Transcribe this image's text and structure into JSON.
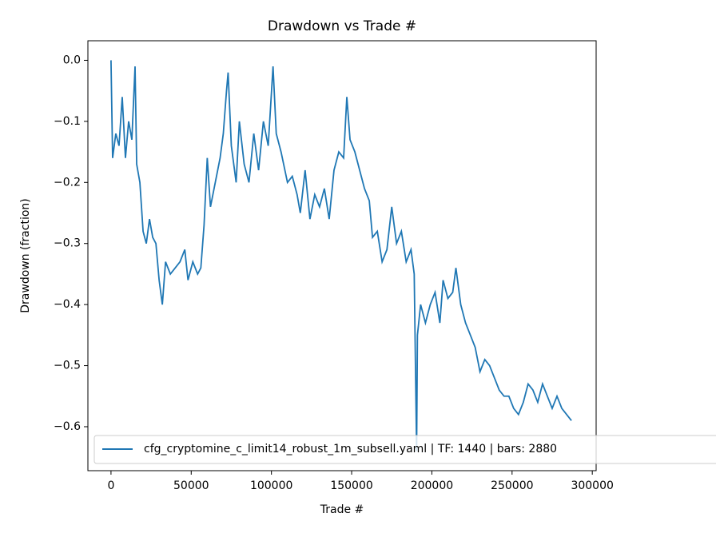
{
  "chart_data": {
    "type": "line",
    "title": "Drawdown vs Trade #",
    "xlabel": "Trade #",
    "ylabel": "Drawdown (fraction)",
    "x": [
      0,
      1000,
      3000,
      5000,
      7000,
      9000,
      11000,
      13000,
      15000,
      16000,
      18000,
      20000,
      22000,
      24000,
      26000,
      28000,
      30000,
      32000,
      34000,
      37000,
      40000,
      43000,
      46000,
      48000,
      51000,
      54000,
      56000,
      58000,
      60000,
      62000,
      65000,
      68000,
      70000,
      72000,
      73000,
      75000,
      78000,
      80000,
      83000,
      86000,
      89000,
      92000,
      95000,
      98000,
      101000,
      103000,
      106000,
      110000,
      113000,
      116000,
      118000,
      121000,
      124000,
      127000,
      130000,
      133000,
      136000,
      139000,
      142000,
      145000,
      147000,
      149000,
      152000,
      155000,
      158000,
      161000,
      163000,
      166000,
      169000,
      172000,
      175000,
      178000,
      181000,
      184000,
      187000,
      189000,
      190500,
      191000,
      193000,
      196000,
      199000,
      202000,
      205000,
      207000,
      210000,
      213000,
      215000,
      218000,
      221000,
      224000,
      227000,
      230000,
      233000,
      236000,
      239000,
      242000,
      245000,
      248000,
      251000,
      254000,
      257000,
      260000,
      263000,
      266000,
      269000,
      272000,
      275000,
      278000,
      281000,
      284000,
      287000
    ],
    "series": [
      {
        "name": "cfg_cryptomine_c_limit14_robust_1m_subsell.yaml | TF: 1440 | bars: 2880",
        "color": "#1f77b4",
        "values": [
          0,
          -0.16,
          -0.12,
          -0.14,
          -0.06,
          -0.16,
          -0.1,
          -0.13,
          -0.01,
          -0.17,
          -0.2,
          -0.28,
          -0.3,
          -0.26,
          -0.29,
          -0.3,
          -0.36,
          -0.4,
          -0.33,
          -0.35,
          -0.34,
          -0.33,
          -0.31,
          -0.36,
          -0.33,
          -0.35,
          -0.34,
          -0.27,
          -0.16,
          -0.24,
          -0.2,
          -0.16,
          -0.12,
          -0.05,
          -0.02,
          -0.14,
          -0.2,
          -0.1,
          -0.17,
          -0.2,
          -0.12,
          -0.18,
          -0.1,
          -0.14,
          -0.01,
          -0.12,
          -0.15,
          -0.2,
          -0.19,
          -0.22,
          -0.25,
          -0.18,
          -0.26,
          -0.22,
          -0.24,
          -0.21,
          -0.26,
          -0.18,
          -0.15,
          -0.16,
          -0.06,
          -0.13,
          -0.15,
          -0.18,
          -0.21,
          -0.23,
          -0.29,
          -0.28,
          -0.33,
          -0.31,
          -0.24,
          -0.3,
          -0.28,
          -0.33,
          -0.31,
          -0.35,
          -0.64,
          -0.45,
          -0.4,
          -0.43,
          -0.4,
          -0.38,
          -0.43,
          -0.36,
          -0.39,
          -0.38,
          -0.34,
          -0.4,
          -0.43,
          -0.45,
          -0.47,
          -0.51,
          -0.49,
          -0.5,
          -0.52,
          -0.54,
          -0.55,
          -0.55,
          -0.57,
          -0.58,
          -0.56,
          -0.53,
          -0.54,
          -0.56,
          -0.53,
          -0.55,
          -0.57,
          -0.55,
          -0.57,
          -0.58,
          -0.59
        ]
      }
    ],
    "xlim": [
      -14400,
      302400
    ],
    "ylim": [
      -0.672,
      0.032
    ],
    "xticks": [
      0,
      50000,
      100000,
      150000,
      200000,
      250000,
      300000
    ],
    "yticks": [
      {
        "value": 0,
        "label": "0.0"
      },
      {
        "value": -0.1,
        "label": "−0.1"
      },
      {
        "value": -0.2,
        "label": "−0.2"
      },
      {
        "value": -0.3,
        "label": "−0.3"
      },
      {
        "value": -0.4,
        "label": "−0.4"
      },
      {
        "value": -0.5,
        "label": "−0.5"
      },
      {
        "value": -0.6,
        "label": "−0.6"
      }
    ],
    "legend": "lower left"
  }
}
